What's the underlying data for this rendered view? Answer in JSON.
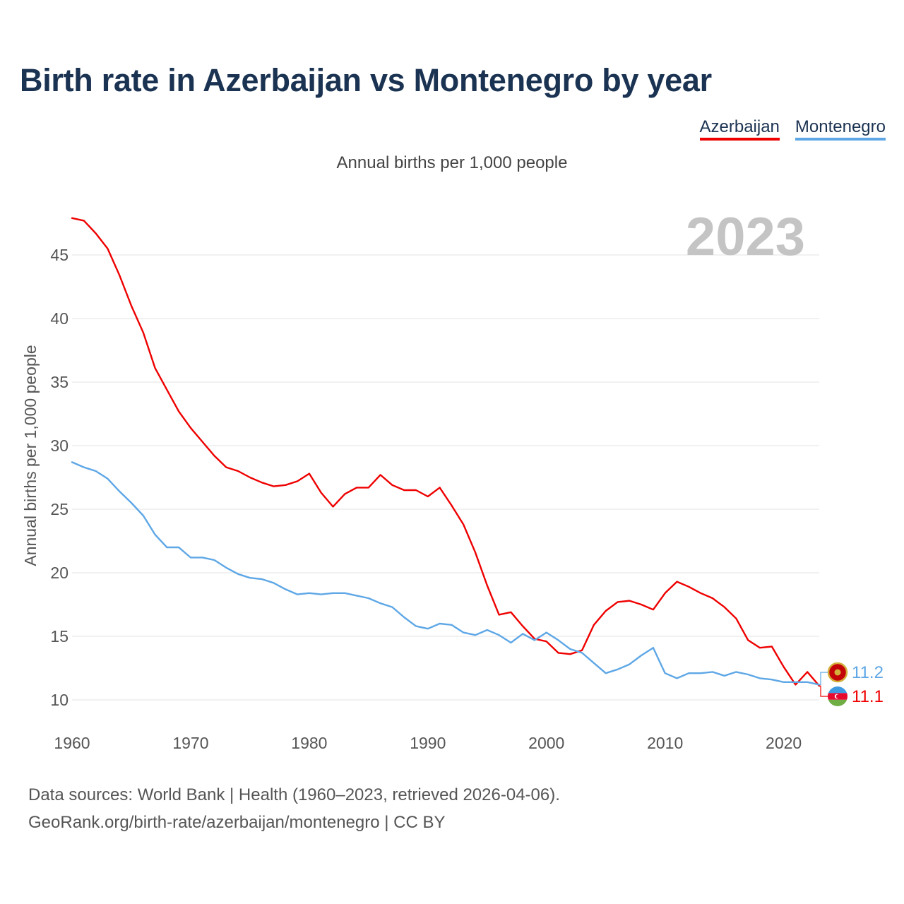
{
  "title": "Birth rate in Azerbaijan vs Montenegro by year",
  "subtitle": "Annual births per 1,000 people",
  "legend": [
    "Azerbaijan",
    "Montenegro"
  ],
  "year_label": "2023",
  "footer": {
    "line1": "Data sources: World Bank | Health (1960–2023, retrieved 2026-04-06).",
    "line2": "GeoRank.org/birth-rate/azerbaijan/montenegro | CC BY"
  },
  "chart_data": {
    "type": "line",
    "title": "Birth rate in Azerbaijan vs Montenegro by year",
    "subtitle": "Annual births per 1,000 people",
    "xlabel": "",
    "ylabel": "Annual births per 1,000 people",
    "xlim": [
      1960,
      2023
    ],
    "ylim": [
      9,
      48
    ],
    "x_ticks": [
      1960,
      1970,
      1980,
      1990,
      2000,
      2010,
      2020
    ],
    "y_ticks": [
      10,
      15,
      20,
      25,
      30,
      35,
      40,
      45
    ],
    "grid": true,
    "legend_position": "top-right",
    "start_year": 1960,
    "series": [
      {
        "name": "Azerbaijan",
        "color": "#ee0000",
        "end_label": "11.1",
        "values": [
          47.9,
          47.7,
          46.7,
          45.5,
          43.4,
          41.0,
          38.9,
          36.1,
          34.4,
          32.7,
          31.4,
          30.3,
          29.2,
          28.3,
          28.0,
          27.5,
          27.1,
          26.8,
          26.9,
          27.2,
          27.8,
          26.3,
          25.2,
          26.2,
          26.7,
          26.7,
          27.7,
          26.9,
          26.5,
          26.5,
          26.0,
          26.7,
          25.3,
          23.8,
          21.6,
          19.0,
          16.7,
          16.9,
          15.8,
          14.8,
          14.6,
          13.7,
          13.6,
          13.9,
          15.9,
          17.0,
          17.7,
          17.8,
          17.5,
          17.1,
          18.4,
          19.3,
          18.9,
          18.4,
          18.0,
          17.3,
          16.4,
          14.7,
          14.1,
          14.2,
          12.6,
          11.2,
          12.2,
          11.1
        ]
      },
      {
        "name": "Montenegro",
        "color": "#5ea7e6",
        "end_label": "11.2",
        "values": [
          28.7,
          28.3,
          28.0,
          27.4,
          26.4,
          25.5,
          24.5,
          23.0,
          22.0,
          22.0,
          21.2,
          21.2,
          21.0,
          20.4,
          19.9,
          19.6,
          19.5,
          19.2,
          18.7,
          18.3,
          18.4,
          18.3,
          18.4,
          18.4,
          18.2,
          18.0,
          17.6,
          17.3,
          16.5,
          15.8,
          15.6,
          16.0,
          15.9,
          15.3,
          15.1,
          15.5,
          15.1,
          14.5,
          15.2,
          14.7,
          15.3,
          14.7,
          14.0,
          13.7,
          12.9,
          12.1,
          12.4,
          12.8,
          13.5,
          14.1,
          12.1,
          11.7,
          12.1,
          12.1,
          12.2,
          11.9,
          12.2,
          12.0,
          11.7,
          11.6,
          11.4,
          11.4,
          11.4,
          11.2
        ]
      }
    ]
  }
}
